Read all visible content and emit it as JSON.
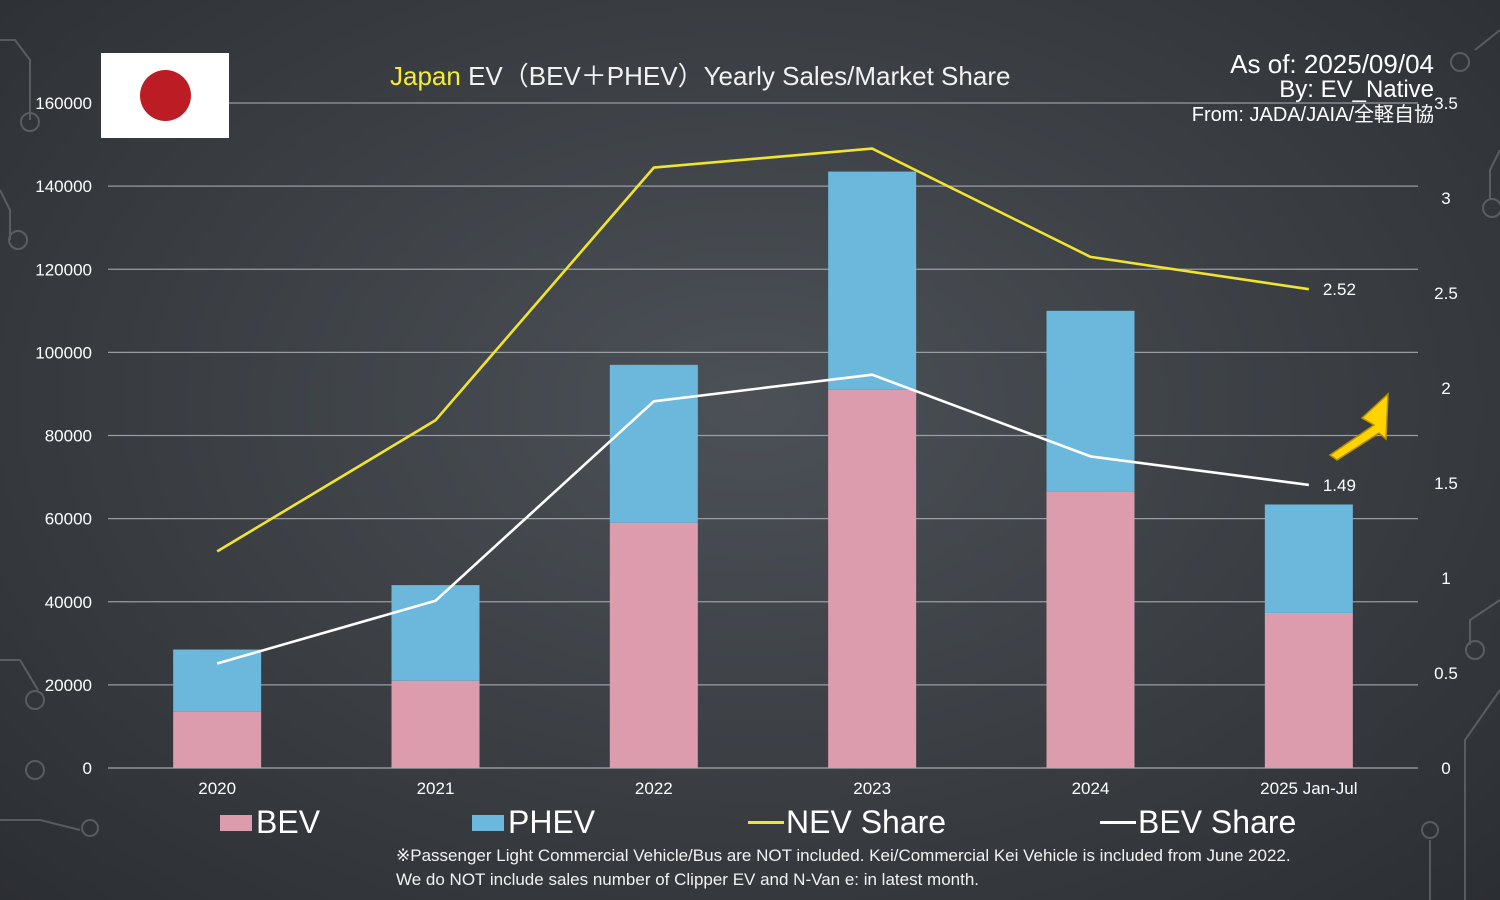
{
  "header": {
    "title_highlight": "Japan",
    "title_rest": " EV（BEV＋PHEV）Yearly Sales/Market Share",
    "as_of": "As of: 2025/09/04",
    "by": "By: EV_Native",
    "from": "From: JADA/JAIA/全軽自協"
  },
  "flag": {
    "icon": "japan-flag-icon",
    "sun_color": "#bc1c24"
  },
  "colors": {
    "bev": "#dc9cad",
    "phev": "#6cb8dc",
    "nev_share": "#f0e52e",
    "bev_share": "#ffffff",
    "arrow": "#ffd400"
  },
  "chart_data": {
    "type": "bar",
    "stacked": true,
    "categories": [
      "2020",
      "2021",
      "2022",
      "2023",
      "2024",
      "2025 Jan-Jul"
    ],
    "series": [
      {
        "name": "BEV",
        "type": "bar",
        "axis": "left",
        "values": [
          13500,
          21000,
          59000,
          91000,
          66500,
          37300
        ]
      },
      {
        "name": "PHEV",
        "type": "bar",
        "axis": "left",
        "values": [
          15000,
          23000,
          38000,
          52500,
          43500,
          26100
        ]
      },
      {
        "name": "NEV Share",
        "type": "line",
        "axis": "right",
        "values": [
          1.14,
          1.83,
          3.16,
          3.26,
          2.69,
          2.52
        ]
      },
      {
        "name": "BEV Share",
        "type": "line",
        "axis": "right",
        "values": [
          0.55,
          0.88,
          1.93,
          2.07,
          1.64,
          1.49
        ]
      }
    ],
    "y_left": {
      "min": 0,
      "max": 160000,
      "ticks": [
        "0",
        "20000",
        "40000",
        "60000",
        "80000",
        "100000",
        "120000",
        "140000",
        "160000"
      ]
    },
    "y_right": {
      "min": 0,
      "max": 3.5,
      "ticks": [
        "0",
        "0.5",
        "1",
        "1.5",
        "2",
        "2.5",
        "3",
        "3.5"
      ]
    },
    "annotations": [
      {
        "series": "NEV Share",
        "index": 5,
        "label": "2.52"
      },
      {
        "series": "BEV Share",
        "index": 5,
        "label": "1.49"
      }
    ],
    "grid": true,
    "legend_position": "bottom"
  },
  "legend": {
    "bev": "BEV",
    "phev": "PHEV",
    "nev": "NEV Share",
    "bev_share": "BEV Share"
  },
  "footnote": {
    "line1": "※Passenger Light Commercial Vehicle/Bus are NOT included. Kei/Commercial Kei Vehicle is included from June 2022.",
    "line2": "We do NOT include sales number of Clipper EV and N-Van e: in latest month."
  }
}
